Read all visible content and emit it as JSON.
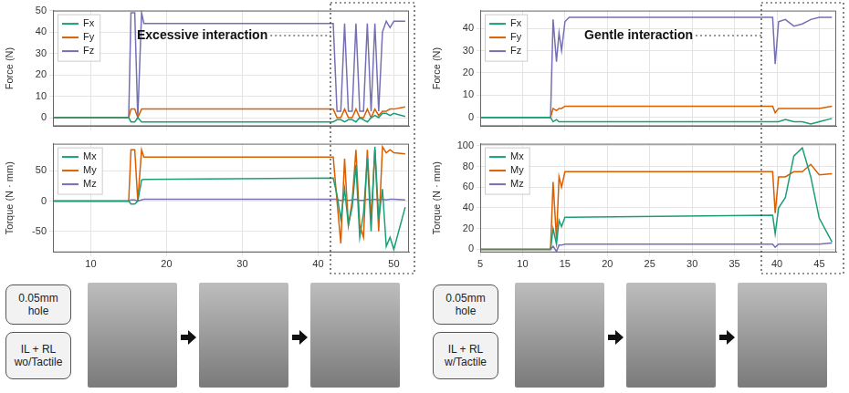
{
  "chart_data": [
    {
      "type": "line",
      "y_label": "Force (N)",
      "annotation": "Excessive interaction",
      "x": [
        5,
        15,
        15.3,
        15.8,
        16.2,
        16.7,
        17,
        42,
        42.5,
        43,
        43.5,
        44,
        44.5,
        45,
        45.5,
        46,
        46.5,
        47,
        47.5,
        48,
        48.5,
        49,
        49.5,
        50,
        51.5
      ],
      "series": [
        {
          "name": "Fx",
          "color": "#1b9e77",
          "values": [
            0,
            0,
            -2,
            -2,
            0,
            -2,
            -2,
            -2,
            -1,
            -1,
            -2,
            -1,
            -1,
            -2,
            0,
            -1,
            -2,
            0,
            1,
            0,
            2,
            2,
            1,
            2,
            0.5
          ]
        },
        {
          "name": "Fy",
          "color": "#d95f02",
          "values": [
            0,
            0,
            4,
            4,
            0,
            4,
            4,
            4,
            0,
            0,
            4,
            0,
            0,
            4,
            0,
            0,
            4,
            0,
            4,
            1,
            3,
            3,
            4,
            4,
            5
          ]
        },
        {
          "name": "Fz",
          "color": "#7570b3",
          "values": [
            0,
            0,
            49,
            49,
            0,
            49,
            44,
            44,
            3,
            3,
            44,
            3,
            3,
            44,
            3,
            3,
            44,
            3,
            44,
            3,
            40,
            45,
            42,
            45,
            45
          ]
        }
      ],
      "xlim": [
        5,
        52
      ],
      "xticks": [
        10,
        20,
        30,
        40,
        50
      ],
      "ylim": [
        -4,
        50
      ],
      "yticks": [
        0,
        10,
        20,
        30,
        40,
        50
      ],
      "grid": true,
      "legend": "upper left",
      "tick_labels": "y"
    },
    {
      "type": "line",
      "y_label": "Torque (N · mm)",
      "x": [
        5,
        15,
        15.3,
        15.8,
        16.2,
        16.7,
        17,
        42,
        42.5,
        43,
        43.5,
        44,
        44.5,
        45,
        45.5,
        46,
        46.5,
        47,
        47.5,
        48,
        48.5,
        49,
        49.5,
        50,
        51.5
      ],
      "series": [
        {
          "name": "Mx",
          "color": "#1b9e77",
          "values": [
            0,
            0,
            -5,
            -5,
            0,
            35,
            36,
            38,
            10,
            -30,
            20,
            -40,
            -10,
            60,
            -60,
            -20,
            70,
            -50,
            90,
            -30,
            20,
            -75,
            -60,
            -80,
            -10
          ]
        },
        {
          "name": "My",
          "color": "#d95f02",
          "values": [
            0,
            0,
            85,
            85,
            0,
            85,
            73,
            73,
            0,
            -70,
            70,
            -40,
            0,
            85,
            -40,
            -60,
            85,
            -30,
            85,
            -50,
            90,
            80,
            85,
            80,
            78
          ]
        },
        {
          "name": "Mz",
          "color": "#7570b3",
          "values": [
            0,
            0,
            2,
            2,
            0,
            2,
            3,
            3,
            3,
            1,
            3,
            1,
            2,
            3,
            1,
            1,
            3,
            2,
            3,
            2,
            3,
            2,
            3,
            3,
            2
          ]
        }
      ],
      "xlim": [
        5,
        52
      ],
      "xticks": [
        10,
        20,
        30,
        40,
        50
      ],
      "ylim": [
        -85,
        95
      ],
      "yticks": [
        -50,
        0,
        50
      ],
      "grid": true,
      "legend": "upper left"
    },
    {
      "type": "line",
      "y_label": "Force (N)",
      "annotation": "Gentle interaction",
      "x": [
        5,
        13.3,
        13.6,
        14,
        14.3,
        14.6,
        15,
        15.5,
        39.5,
        39.8,
        40.2,
        41,
        42,
        43,
        44,
        45,
        46.5
      ],
      "series": [
        {
          "name": "Fx",
          "color": "#1b9e77",
          "values": [
            0,
            0,
            -2,
            -1,
            -2,
            -2,
            -2,
            -2,
            -2,
            -2,
            -2,
            -1,
            -2,
            -2,
            -3,
            -2,
            -0.5
          ]
        },
        {
          "name": "Fy",
          "color": "#d95f02",
          "values": [
            0,
            0,
            4,
            3,
            4,
            4,
            5,
            5,
            5,
            2,
            4,
            4,
            4,
            4,
            4,
            4,
            5
          ]
        },
        {
          "name": "Fz",
          "color": "#7570b3",
          "values": [
            0,
            0,
            44,
            25,
            38,
            30,
            43,
            45,
            45,
            24,
            43,
            44,
            41,
            42,
            44,
            45,
            45
          ]
        }
      ],
      "xlim": [
        5,
        47
      ],
      "xticks": [
        5,
        10,
        15,
        20,
        25,
        30,
        35,
        40,
        45
      ],
      "ylim": [
        -4,
        48
      ],
      "yticks": [
        0,
        10,
        20,
        30,
        40
      ],
      "grid": true,
      "legend": "upper left",
      "tick_labels": "y"
    },
    {
      "type": "line",
      "y_label": "Torque (N · mm)",
      "x": [
        5,
        13.3,
        13.6,
        14,
        14.3,
        14.6,
        15,
        15.5,
        39.5,
        39.8,
        40.2,
        41,
        42,
        43,
        44,
        45,
        46.5
      ],
      "series": [
        {
          "name": "Mx",
          "color": "#1b9e77",
          "values": [
            0,
            0,
            20,
            5,
            28,
            22,
            31,
            31,
            33,
            15,
            40,
            50,
            90,
            98,
            70,
            30,
            7
          ]
        },
        {
          "name": "My",
          "color": "#d95f02",
          "values": [
            0,
            0,
            65,
            10,
            70,
            60,
            75,
            75,
            75,
            35,
            70,
            70,
            75,
            75,
            82,
            72,
            73
          ]
        },
        {
          "name": "Mz",
          "color": "#7570b3",
          "values": [
            0,
            0,
            3,
            -2,
            4,
            4,
            5,
            5,
            5,
            2,
            5,
            5,
            5,
            5,
            5,
            5,
            6
          ]
        }
      ],
      "xlim": [
        5,
        47
      ],
      "xticks": [
        5,
        10,
        15,
        20,
        25,
        30,
        35,
        40,
        45
      ],
      "ylim": [
        -3,
        102
      ],
      "yticks": [
        0,
        20,
        40,
        60,
        80,
        100
      ],
      "grid": true,
      "legend": "upper left"
    }
  ],
  "captions": [
    {
      "hole": "0.05mm hole",
      "method": "IL + RL wo/Tactile"
    },
    {
      "hole": "0.05mm hole",
      "method": "IL + RL w/Tactile"
    }
  ]
}
